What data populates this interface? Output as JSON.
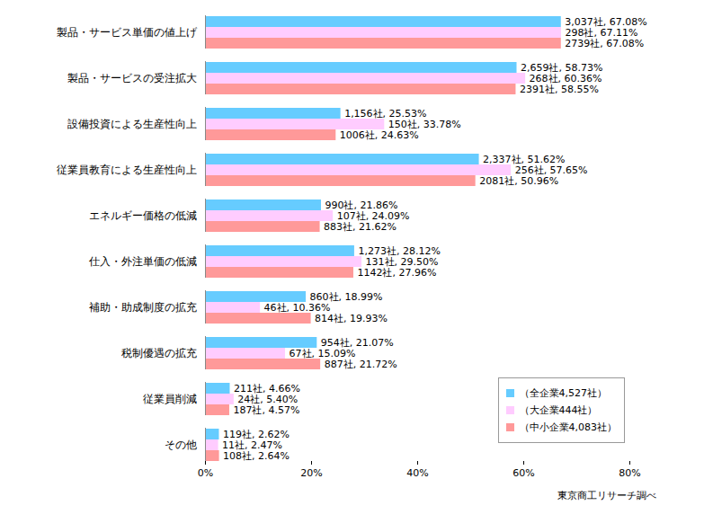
{
  "chart_data": {
    "type": "bar",
    "orientation": "horizontal",
    "caption": "東京商工リサーチ調べ",
    "categories": [
      "製品・サービス単価の値上げ",
      "製品・サービスの受注拡大",
      "設備投資による生産性向上",
      "従業員教育による生産性向上",
      "エネルギー価格の低減",
      "仕入・外注単価の低減",
      "補助・助成制度の拡充",
      "税制優遇の拡充",
      "従業員削減",
      "その他"
    ],
    "series": [
      {
        "name": "（全企業4,527社）",
        "color": "#66ccff",
        "values": [
          67.08,
          58.73,
          25.53,
          51.62,
          21.86,
          28.12,
          18.99,
          21.07,
          4.66,
          2.62
        ],
        "value_labels": [
          "3,037社, 67.08%",
          "2,659社, 58.73%",
          "1,156社, 25.53%",
          "2,337社, 51.62%",
          "990社, 21.86%",
          "1,273社, 28.12%",
          "860社, 18.99%",
          "954社, 21.07%",
          "211社, 4.66%",
          "119社, 2.62%"
        ]
      },
      {
        "name": "（大企業444社）",
        "color": "#ffccff",
        "values": [
          67.11,
          60.36,
          33.78,
          57.65,
          24.09,
          29.5,
          10.36,
          15.09,
          5.4,
          2.47
        ],
        "value_labels": [
          "298社, 67.11%",
          "268社, 60.36%",
          "150社, 33.78%",
          "256社, 57.65%",
          "107社, 24.09%",
          "131社, 29.50%",
          "46社, 10.36%",
          "67社, 15.09%",
          "24社, 5.40%",
          "11社, 2.47%"
        ]
      },
      {
        "name": "（中小企業4,083社）",
        "color": "#ff9999",
        "values": [
          67.08,
          58.55,
          24.63,
          50.96,
          21.62,
          27.96,
          19.93,
          21.72,
          4.57,
          2.64
        ],
        "value_labels": [
          "2739社, 67.08%",
          "2391社, 58.55%",
          "1006社, 24.63%",
          "2081社, 50.96%",
          "883社, 21.62%",
          "1142社, 27.96%",
          "814社, 19.93%",
          "887社, 21.72%",
          "187社, 4.57%",
          "108社, 2.64%"
        ]
      }
    ],
    "xlim": [
      0,
      80
    ],
    "xticks": [
      {
        "value": 0,
        "label": "0%"
      },
      {
        "value": 20,
        "label": "20%"
      },
      {
        "value": 40,
        "label": "40%"
      },
      {
        "value": 60,
        "label": "60%"
      },
      {
        "value": 80,
        "label": "80%"
      }
    ],
    "grid": false,
    "data_labels": true,
    "legend": "lower right"
  }
}
